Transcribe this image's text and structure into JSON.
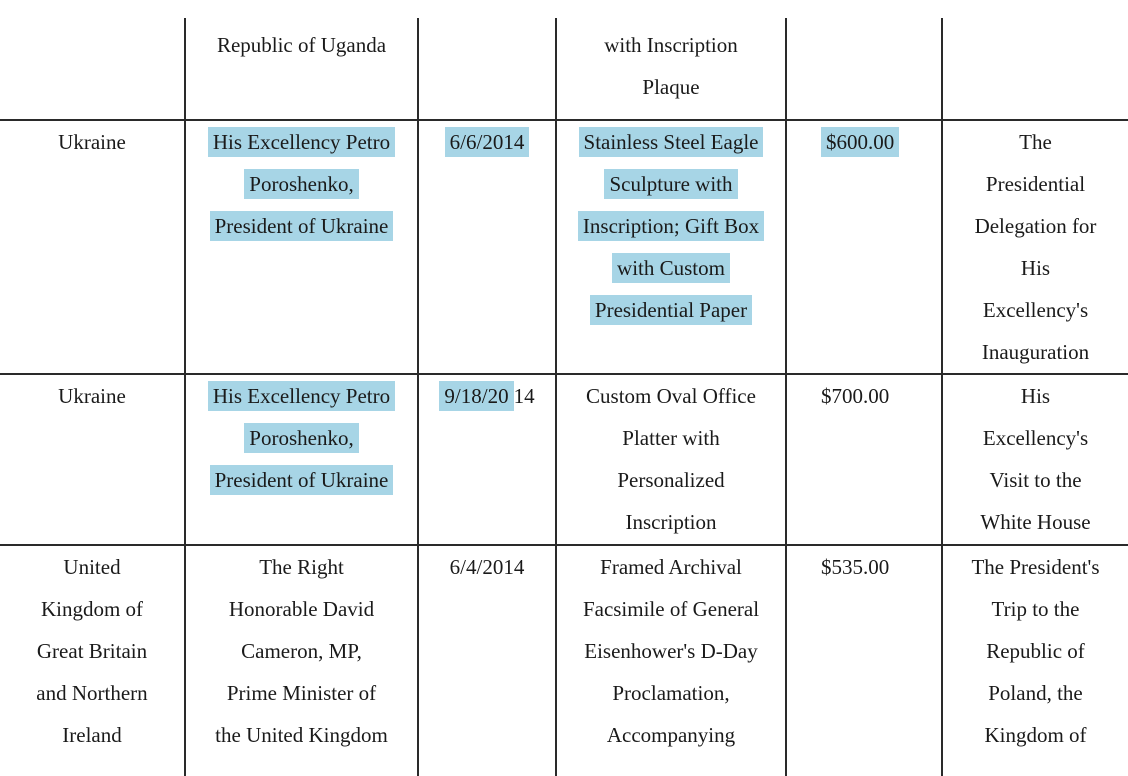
{
  "highlight_color": "#a7d5e6",
  "rows": [
    {
      "cells": [
        {
          "lines": [
            []
          ]
        },
        {
          "lines": [
            [
              {
                "t": "Republic of Uganda"
              }
            ]
          ]
        },
        {
          "lines": [
            []
          ]
        },
        {
          "lines": [
            [
              {
                "t": "with Inscription"
              }
            ],
            [
              {
                "t": "Plaque"
              }
            ]
          ]
        },
        {
          "lines": [
            []
          ]
        },
        {
          "lines": [
            []
          ]
        }
      ]
    },
    {
      "cells": [
        {
          "lines": [
            [
              {
                "t": "Ukraine"
              }
            ]
          ]
        },
        {
          "lines": [
            [
              {
                "t": "His Excellency Petro",
                "hl": true
              }
            ],
            [
              {
                "t": "Poroshenko,",
                "hl": true
              }
            ],
            [
              {
                "t": "President of Ukraine",
                "hl": true
              }
            ]
          ]
        },
        {
          "lines": [
            [
              {
                "t": "6/6/2014",
                "hl": true
              }
            ]
          ]
        },
        {
          "lines": [
            [
              {
                "t": "Stainless Steel Eagle",
                "hl": true
              }
            ],
            [
              {
                "t": "Sculpture with",
                "hl": true
              }
            ],
            [
              {
                "t": "Inscription; Gift Box",
                "hl": true
              }
            ],
            [
              {
                "t": "with Custom",
                "hl": true
              }
            ],
            [
              {
                "t": "Presidential Paper",
                "hl": true
              }
            ]
          ]
        },
        {
          "amount": true,
          "lines": [
            [
              {
                "t": "$600.00",
                "hl": true
              }
            ]
          ]
        },
        {
          "lines": [
            [
              {
                "t": "The"
              }
            ],
            [
              {
                "t": "Presidential"
              }
            ],
            [
              {
                "t": "Delegation for"
              }
            ],
            [
              {
                "t": "His"
              }
            ],
            [
              {
                "t": "Excellency's"
              }
            ],
            [
              {
                "t": "Inauguration"
              }
            ]
          ]
        }
      ]
    },
    {
      "cells": [
        {
          "lines": [
            [
              {
                "t": "Ukraine"
              }
            ]
          ]
        },
        {
          "lines": [
            [
              {
                "t": "His Excellency Petro",
                "hl": true
              }
            ],
            [
              {
                "t": "Poroshenko,",
                "hl": true
              }
            ],
            [
              {
                "t": "President of Ukraine",
                "hl": true
              }
            ]
          ]
        },
        {
          "lines": [
            [
              {
                "t": "9/18/20",
                "hl": true
              },
              {
                "t": "14"
              }
            ]
          ]
        },
        {
          "lines": [
            [
              {
                "t": "Custom Oval Office"
              }
            ],
            [
              {
                "t": "Platter with"
              }
            ],
            [
              {
                "t": "Personalized"
              }
            ],
            [
              {
                "t": "Inscription"
              }
            ]
          ]
        },
        {
          "amount": true,
          "lines": [
            [
              {
                "t": "$700.00"
              }
            ]
          ]
        },
        {
          "lines": [
            [
              {
                "t": "His"
              }
            ],
            [
              {
                "t": "Excellency's"
              }
            ],
            [
              {
                "t": "Visit to the"
              }
            ],
            [
              {
                "t": "White House"
              }
            ]
          ]
        }
      ]
    },
    {
      "cells": [
        {
          "lines": [
            [
              {
                "t": "United"
              }
            ],
            [
              {
                "t": "Kingdom of"
              }
            ],
            [
              {
                "t": "Great Britain"
              }
            ],
            [
              {
                "t": "and Northern"
              }
            ],
            [
              {
                "t": "Ireland"
              }
            ]
          ]
        },
        {
          "lines": [
            [
              {
                "t": "The Right"
              }
            ],
            [
              {
                "t": "Honorable David"
              }
            ],
            [
              {
                "t": "Cameron, MP,"
              }
            ],
            [
              {
                "t": "Prime Minister of"
              }
            ],
            [
              {
                "t": "the United Kingdom"
              }
            ]
          ]
        },
        {
          "lines": [
            [
              {
                "t": "6/4/2014"
              }
            ]
          ]
        },
        {
          "lines": [
            [
              {
                "t": "Framed Archival"
              }
            ],
            [
              {
                "t": "Facsimile of General"
              }
            ],
            [
              {
                "t": "Eisenhower's D-Day"
              }
            ],
            [
              {
                "t": "Proclamation,"
              }
            ],
            [
              {
                "t": "Accompanying"
              }
            ]
          ]
        },
        {
          "amount": true,
          "lines": [
            [
              {
                "t": "$535.00"
              }
            ]
          ]
        },
        {
          "lines": [
            [
              {
                "t": "The President's"
              }
            ],
            [
              {
                "t": "Trip to the"
              }
            ],
            [
              {
                "t": "Republic of"
              }
            ],
            [
              {
                "t": "Poland, the"
              }
            ],
            [
              {
                "t": "Kingdom of"
              }
            ]
          ]
        }
      ]
    }
  ]
}
